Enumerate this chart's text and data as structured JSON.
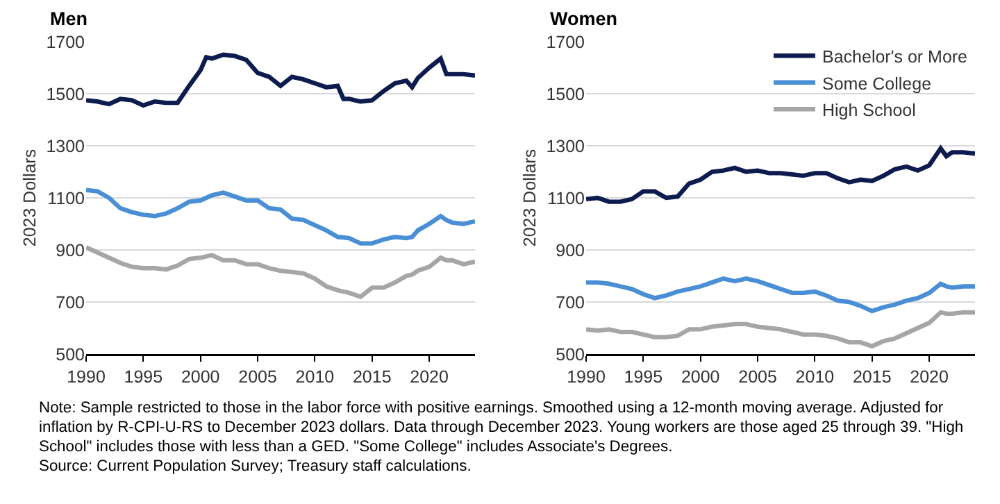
{
  "chart_data": [
    {
      "type": "line",
      "title": "Men",
      "ylabel": "2023 Dollars",
      "x": [
        1990,
        1991,
        1992,
        1993,
        1994,
        1995,
        1996,
        1997,
        1998,
        1999,
        2000,
        2000.5,
        2001,
        2002,
        2003,
        2004,
        2005,
        2006,
        2007,
        2008,
        2009,
        2010,
        2011,
        2012,
        2012.5,
        2013,
        2014,
        2015,
        2016,
        2017,
        2018,
        2018.5,
        2019,
        2020,
        2021,
        2021.5,
        2022,
        2023,
        2024
      ],
      "xlim": [
        1990,
        2024
      ],
      "xticks": [
        1990,
        1995,
        2000,
        2005,
        2010,
        2015,
        2020
      ],
      "ylim": [
        500,
        1700
      ],
      "yticks": [
        500,
        700,
        900,
        1100,
        1300,
        1500,
        1700
      ],
      "grid": "y",
      "legend": false,
      "series": [
        {
          "color": "#0d1b4f",
          "values": [
            1475,
            1470,
            1460,
            1480,
            1475,
            1455,
            1470,
            1465,
            1465,
            1530,
            1590,
            1640,
            1635,
            1650,
            1645,
            1630,
            1580,
            1565,
            1530,
            1565,
            1555,
            1540,
            1525,
            1530,
            1480,
            1480,
            1470,
            1475,
            1510,
            1540,
            1550,
            1525,
            1560,
            1600,
            1635,
            1575,
            1575,
            1575,
            1570
          ]
        },
        {
          "color": "#4a8fd6",
          "values": [
            1130,
            1125,
            1100,
            1060,
            1045,
            1035,
            1030,
            1040,
            1060,
            1085,
            1090,
            1100,
            1110,
            1120,
            1105,
            1090,
            1090,
            1060,
            1055,
            1020,
            1015,
            995,
            975,
            950,
            948,
            945,
            925,
            925,
            940,
            950,
            945,
            950,
            975,
            1000,
            1030,
            1015,
            1005,
            1000,
            1010
          ]
        },
        {
          "color": "#a6a6a6",
          "values": [
            910,
            890,
            870,
            850,
            835,
            830,
            830,
            825,
            840,
            865,
            870,
            875,
            880,
            860,
            860,
            845,
            845,
            830,
            820,
            815,
            810,
            790,
            760,
            745,
            740,
            735,
            720,
            755,
            755,
            775,
            800,
            805,
            820,
            835,
            870,
            860,
            860,
            845,
            855
          ]
        }
      ],
      "annotations": [
        "Note: Sample restricted to those in the labor force with positive earnings. Smoothed using a 12-month moving average. Adjusted for inflation by R-CPI-U-RS to December 2023 dollars. Data through December 2023. Young workers are those aged 25 through 39. \"High School\" includes those with less than a GED. \"Some College\" includes Associate's Degrees.",
        "Source: Current Population Survey; Treasury staff calculations."
      ]
    },
    {
      "type": "line",
      "title": "Women",
      "ylabel": "2023 Dollars",
      "x": [
        1990,
        1991,
        1992,
        1993,
        1994,
        1995,
        1996,
        1997,
        1998,
        1999,
        2000,
        2001,
        2002,
        2003,
        2004,
        2005,
        2006,
        2007,
        2008,
        2009,
        2010,
        2011,
        2012,
        2013,
        2014,
        2015,
        2016,
        2017,
        2018,
        2019,
        2020,
        2021,
        2021.5,
        2022,
        2023,
        2024
      ],
      "xlim": [
        1990,
        2024
      ],
      "xticks": [
        1990,
        1995,
        2000,
        2005,
        2010,
        2015,
        2020
      ],
      "ylim": [
        500,
        1700
      ],
      "yticks": [
        500,
        700,
        900,
        1100,
        1300,
        1500,
        1700
      ],
      "grid": "y",
      "legend": "top right",
      "series": [
        {
          "name": "Bachelor's or More",
          "color": "#0d1b4f",
          "values": [
            1095,
            1100,
            1085,
            1085,
            1095,
            1125,
            1125,
            1100,
            1105,
            1155,
            1170,
            1200,
            1205,
            1215,
            1200,
            1205,
            1195,
            1195,
            1190,
            1185,
            1195,
            1195,
            1175,
            1160,
            1170,
            1165,
            1185,
            1210,
            1220,
            1205,
            1225,
            1290,
            1260,
            1275,
            1275,
            1270
          ]
        },
        {
          "name": "Some College",
          "color": "#4a8fd6",
          "values": [
            775,
            775,
            770,
            760,
            750,
            730,
            715,
            725,
            740,
            750,
            760,
            775,
            790,
            780,
            790,
            780,
            765,
            750,
            735,
            735,
            740,
            725,
            705,
            700,
            685,
            665,
            680,
            690,
            705,
            715,
            735,
            770,
            760,
            755,
            760,
            760
          ]
        },
        {
          "name": "High School",
          "color": "#a6a6a6",
          "values": [
            595,
            590,
            595,
            585,
            585,
            575,
            565,
            565,
            570,
            595,
            595,
            605,
            610,
            615,
            615,
            605,
            600,
            595,
            585,
            575,
            575,
            570,
            560,
            545,
            545,
            530,
            550,
            560,
            580,
            600,
            620,
            660,
            655,
            655,
            660,
            660
          ]
        }
      ]
    }
  ]
}
